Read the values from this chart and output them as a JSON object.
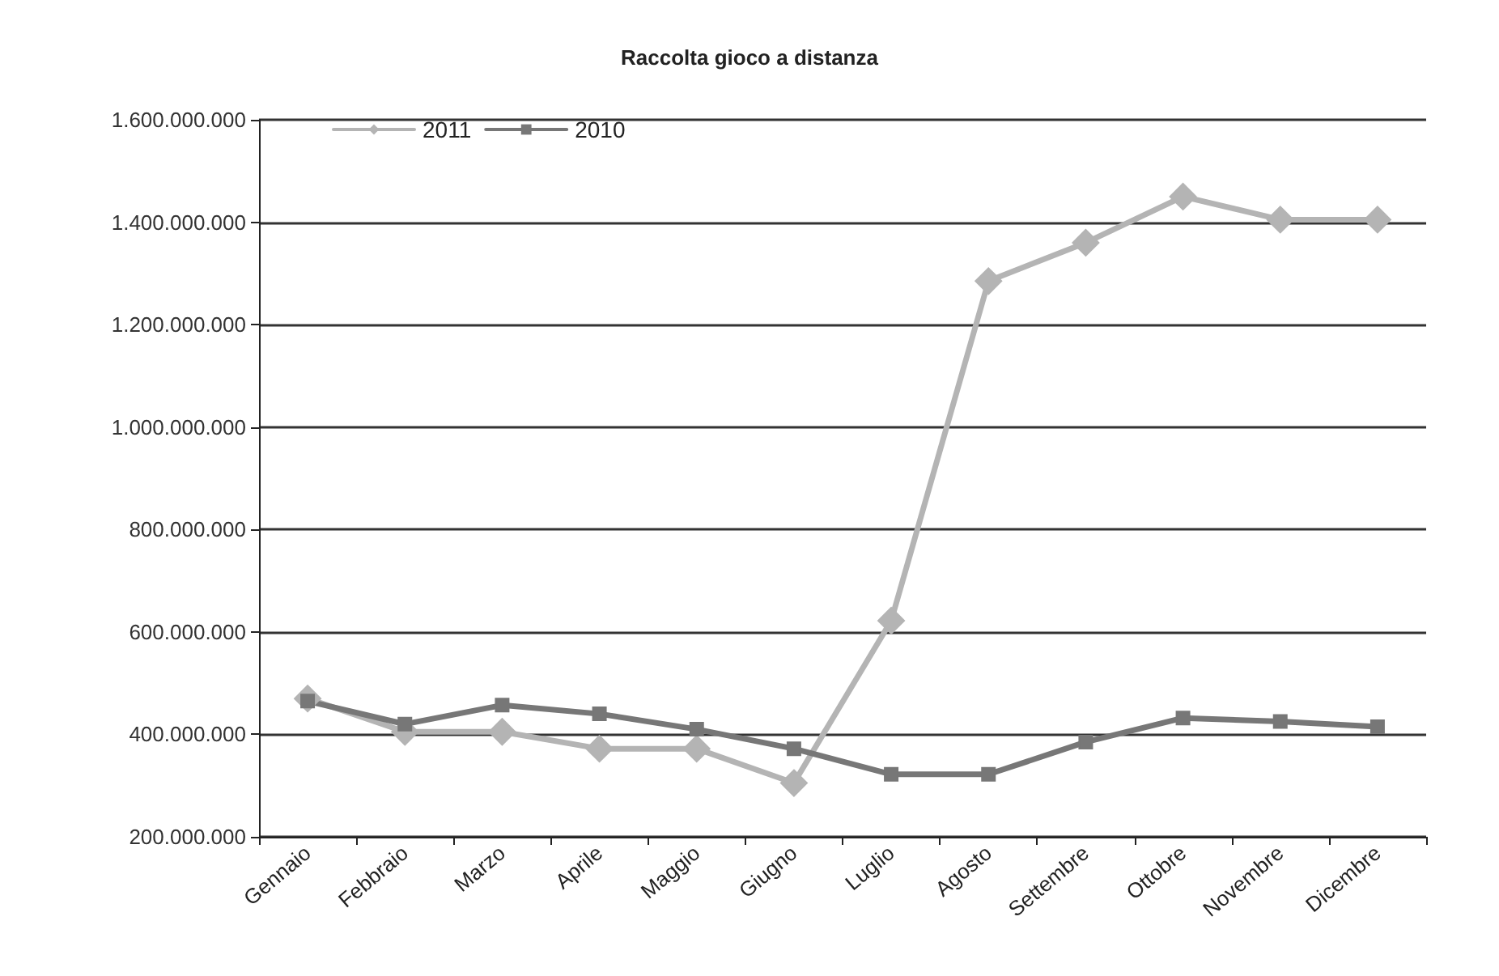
{
  "chart_data": {
    "type": "line",
    "title": "Raccolta gioco a distanza",
    "categories": [
      "Gennaio",
      "Febbraio",
      "Marzo",
      "Aprile",
      "Maggio",
      "Giugno",
      "Luglio",
      "Agosto",
      "Settembre",
      "Ottobre",
      "Novembre",
      "Dicembre"
    ],
    "series": [
      {
        "name": "2011",
        "color": "#b4b4b4",
        "marker": "diamond",
        "values": [
          470000000,
          405000000,
          405000000,
          372000000,
          372000000,
          305000000,
          622000000,
          1285000000,
          1360000000,
          1450000000,
          1405000000,
          1405000000
        ]
      },
      {
        "name": "2010",
        "color": "#777777",
        "marker": "square",
        "values": [
          465000000,
          420000000,
          457000000,
          440000000,
          410000000,
          372000000,
          322000000,
          322000000,
          385000000,
          432000000,
          425000000,
          415000000
        ]
      }
    ],
    "ylim": [
      200000000,
      1600000000
    ],
    "yticks": [
      {
        "value": 200000000,
        "label": "200.000.000"
      },
      {
        "value": 400000000,
        "label": "400.000.000"
      },
      {
        "value": 600000000,
        "label": "600.000.000"
      },
      {
        "value": 800000000,
        "label": "800.000.000"
      },
      {
        "value": 1000000000,
        "label": "1.000.000.000"
      },
      {
        "value": 1200000000,
        "label": "1.200.000.000"
      },
      {
        "value": 1400000000,
        "label": "1.400.000.000"
      },
      {
        "value": 1600000000,
        "label": "1.600.000.000"
      }
    ],
    "grid": "y",
    "legend": "top left",
    "line_style": "solid"
  }
}
